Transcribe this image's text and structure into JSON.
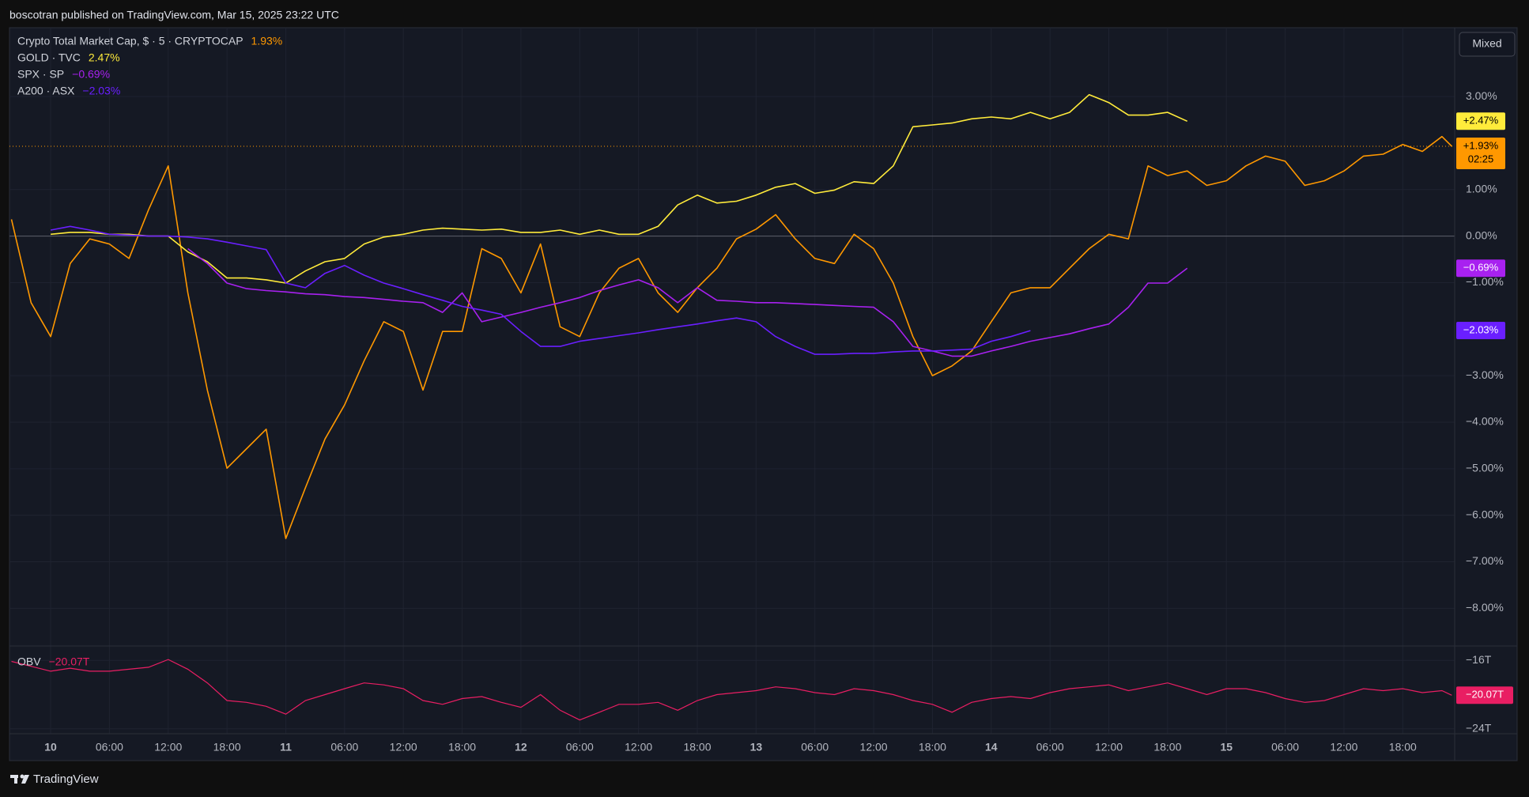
{
  "header": {
    "text": "boscotran published on TradingView.com, Mar 15, 2025 23:22 UTC"
  },
  "ui": {
    "mode_button": "Mixed"
  },
  "footer": {
    "brand": "TradingView"
  },
  "chart_data": [
    {
      "type": "line",
      "x": [
        -4,
        -2,
        0,
        2,
        4,
        6,
        8,
        10,
        12,
        14,
        16,
        18,
        20,
        22,
        24,
        26,
        28,
        30,
        32,
        34,
        36,
        38,
        40,
        42,
        44,
        46,
        48,
        50,
        52,
        54,
        56,
        58,
        60,
        62,
        64,
        66,
        68,
        70,
        72,
        74,
        76,
        78,
        80,
        82,
        84,
        86,
        88,
        90,
        92,
        94,
        96,
        98,
        100,
        102,
        104,
        106,
        108,
        110,
        112,
        114,
        116,
        118,
        120,
        122,
        124,
        126,
        128,
        130,
        132,
        134,
        136,
        138,
        140,
        142,
        143
      ],
      "xlim": [
        -4.2,
        143.3
      ],
      "xticks": [
        {
          "value": 0,
          "label": "10"
        },
        {
          "value": 6,
          "label": "06:00"
        },
        {
          "value": 12,
          "label": "12:00"
        },
        {
          "value": 18,
          "label": "18:00"
        },
        {
          "value": 24,
          "label": "11"
        },
        {
          "value": 30,
          "label": "06:00"
        },
        {
          "value": 36,
          "label": "12:00"
        },
        {
          "value": 42,
          "label": "18:00"
        },
        {
          "value": 48,
          "label": "12"
        },
        {
          "value": 54,
          "label": "06:00"
        },
        {
          "value": 60,
          "label": "12:00"
        },
        {
          "value": 66,
          "label": "18:00"
        },
        {
          "value": 72,
          "label": "13"
        },
        {
          "value": 78,
          "label": "06:00"
        },
        {
          "value": 84,
          "label": "12:00"
        },
        {
          "value": 90,
          "label": "18:00"
        },
        {
          "value": 96,
          "label": "14"
        },
        {
          "value": 102,
          "label": "06:00"
        },
        {
          "value": 108,
          "label": "12:00"
        },
        {
          "value": 114,
          "label": "18:00"
        },
        {
          "value": 120,
          "label": "15"
        },
        {
          "value": 126,
          "label": "06:00"
        },
        {
          "value": 132,
          "label": "12:00"
        },
        {
          "value": 138,
          "label": "18:00"
        }
      ],
      "ylim": [
        -8.81,
        4.48
      ],
      "yticks": [
        {
          "value": 3,
          "label": "3.00%"
        },
        {
          "value": 1,
          "label": "1.00%"
        },
        {
          "value": 0,
          "label": "0.00%"
        },
        {
          "value": -1,
          "label": "−1.00%"
        },
        {
          "value": -3,
          "label": "−3.00%"
        },
        {
          "value": -4,
          "label": "−4.00%"
        },
        {
          "value": -5,
          "label": "−5.00%"
        },
        {
          "value": -6,
          "label": "−6.00%"
        },
        {
          "value": -7,
          "label": "−7.00%"
        },
        {
          "value": -8,
          "label": "−8.00%"
        }
      ],
      "grid": true,
      "countdown": "02:25",
      "series": [
        {
          "name": "Crypto Total Market Cap, $ · 5 · CRYPTOCAP",
          "color": "#ff9800",
          "legend_label": "1.93%",
          "last": 1.93,
          "last_label": "+1.93%",
          "values": [
            0.36,
            -1.43,
            -2.16,
            -0.59,
            -0.06,
            -0.17,
            -0.48,
            0.57,
            1.51,
            -1.22,
            -3.31,
            -4.99,
            -4.57,
            -4.15,
            -6.5,
            -5.41,
            -4.36,
            -3.63,
            -2.68,
            -1.84,
            -2.05,
            -3.31,
            -2.05,
            -2.05,
            -0.27,
            -0.48,
            -1.22,
            -0.17,
            -1.95,
            -2.16,
            -1.22,
            -0.69,
            -0.48,
            -1.22,
            -1.64,
            -1.11,
            -0.69,
            -0.06,
            0.15,
            0.46,
            -0.06,
            -0.48,
            -0.59,
            0.04,
            -0.27,
            -1.01,
            -2.16,
            -3.0,
            -2.79,
            -2.47,
            -1.84,
            -1.22,
            -1.11,
            -1.11,
            -0.69,
            -0.27,
            0.04,
            -0.06,
            1.51,
            1.3,
            1.4,
            1.09,
            1.19,
            1.51,
            1.72,
            1.61,
            1.09,
            1.19,
            1.4,
            1.72,
            1.76,
            1.97,
            1.82,
            2.14,
            1.93
          ]
        },
        {
          "name": "GOLD · TVC",
          "color": "#ffeb3b",
          "legend_label": "2.47%",
          "last": 2.47,
          "last_label": "+2.47%",
          "values": [
            null,
            null,
            0.04,
            0.08,
            0.08,
            0.04,
            0.04,
            0,
            0,
            -0.34,
            -0.55,
            -0.9,
            -0.9,
            -0.94,
            -1.01,
            -0.75,
            -0.55,
            -0.48,
            -0.17,
            -0.02,
            0.04,
            0.13,
            0.17,
            0.15,
            0.13,
            0.15,
            0.08,
            0.08,
            0.13,
            0.04,
            0.13,
            0.04,
            0.04,
            0.21,
            0.67,
            0.88,
            0.71,
            0.75,
            0.88,
            1.05,
            1.13,
            0.92,
            0.99,
            1.17,
            1.13,
            1.51,
            2.35,
            2.39,
            2.43,
            2.52,
            2.56,
            2.52,
            2.66,
            2.52,
            2.66,
            3.04,
            2.87,
            2.6,
            2.6,
            2.66,
            2.47,
            null,
            null,
            null,
            null,
            null,
            null,
            null,
            null,
            null,
            null,
            null,
            null,
            null,
            null
          ]
        },
        {
          "name": "SPX · SP",
          "color": "#a821f0",
          "legend_label": "−0.69%",
          "last": -0.69,
          "last_label": "−0.69%",
          "values": [
            null,
            null,
            null,
            null,
            null,
            null,
            null,
            null,
            null,
            -0.27,
            -0.59,
            -1.01,
            -1.13,
            -1.17,
            -1.2,
            -1.24,
            -1.26,
            -1.3,
            -1.32,
            -1.36,
            -1.4,
            -1.43,
            -1.64,
            -1.22,
            -1.84,
            -1.74,
            -1.64,
            -1.53,
            -1.43,
            -1.32,
            -1.17,
            -1.05,
            -0.94,
            -1.11,
            -1.43,
            -1.11,
            -1.38,
            -1.4,
            -1.43,
            -1.43,
            -1.45,
            -1.47,
            -1.49,
            -1.51,
            -1.53,
            -1.84,
            -2.37,
            -2.47,
            -2.58,
            -2.58,
            -2.47,
            -2.37,
            -2.26,
            -2.18,
            -2.1,
            -1.99,
            -1.89,
            -1.53,
            -1.01,
            -1.01,
            -0.69,
            null,
            null,
            null,
            null,
            null,
            null,
            null,
            null,
            null,
            null,
            null,
            null,
            null,
            null
          ]
        },
        {
          "name": "A200 · ASX",
          "color": "#6a1fff",
          "legend_label": "−2.03%",
          "last": -2.03,
          "last_label": "−2.03%",
          "values": [
            null,
            null,
            0.13,
            0.21,
            0.13,
            0.04,
            0.02,
            0,
            0,
            -0.02,
            -0.06,
            -0.13,
            -0.21,
            -0.29,
            -1.01,
            -1.11,
            -0.8,
            -0.63,
            -0.84,
            -1.01,
            -1.13,
            -1.26,
            -1.38,
            -1.51,
            -1.59,
            -1.68,
            -2.05,
            -2.37,
            -2.37,
            -2.26,
            -2.2,
            -2.14,
            -2.08,
            -2.01,
            -1.95,
            -1.89,
            -1.82,
            -1.76,
            -1.84,
            -2.16,
            -2.37,
            -2.54,
            -2.54,
            -2.52,
            -2.52,
            -2.49,
            -2.47,
            -2.47,
            -2.45,
            -2.43,
            -2.26,
            -2.16,
            -2.03,
            null,
            null,
            null,
            null,
            null,
            null,
            null,
            null,
            null,
            null,
            null,
            null,
            null,
            null,
            null,
            null,
            null,
            null,
            null,
            null,
            null,
            null
          ]
        }
      ]
    },
    {
      "type": "line",
      "title": "OBV",
      "color": "#e91e63",
      "last": -20.07,
      "last_label": "−20.07T",
      "x": [
        -4,
        -2,
        0,
        2,
        4,
        6,
        8,
        10,
        12,
        14,
        16,
        18,
        20,
        22,
        24,
        26,
        28,
        30,
        32,
        34,
        36,
        38,
        40,
        42,
        44,
        46,
        48,
        50,
        52,
        54,
        56,
        58,
        60,
        62,
        64,
        66,
        68,
        70,
        72,
        74,
        76,
        78,
        80,
        82,
        84,
        86,
        88,
        90,
        92,
        94,
        96,
        98,
        100,
        102,
        104,
        106,
        108,
        110,
        112,
        114,
        116,
        118,
        120,
        122,
        124,
        126,
        128,
        130,
        132,
        134,
        136,
        138,
        140,
        142,
        143
      ],
      "values": [
        -16.11,
        -16.69,
        -17.26,
        -16.91,
        -17.26,
        -17.26,
        -17.03,
        -16.8,
        -15.89,
        -17.03,
        -18.63,
        -20.69,
        -20.91,
        -21.37,
        -22.29,
        -20.69,
        -20,
        -19.31,
        -18.63,
        -18.86,
        -19.31,
        -20.69,
        -21.14,
        -20.46,
        -20.23,
        -20.91,
        -21.49,
        -20,
        -21.83,
        -22.97,
        -22.06,
        -21.14,
        -21.14,
        -20.91,
        -21.83,
        -20.69,
        -20,
        -19.77,
        -19.54,
        -19.09,
        -19.31,
        -19.77,
        -20,
        -19.31,
        -19.54,
        -20,
        -20.69,
        -21.14,
        -22.06,
        -20.91,
        -20.46,
        -20.23,
        -20.46,
        -19.77,
        -19.31,
        -19.09,
        -18.86,
        -19.54,
        -19.09,
        -18.63,
        -19.31,
        -20,
        -19.31,
        -19.31,
        -19.77,
        -20.46,
        -20.91,
        -20.69,
        -20,
        -19.31,
        -19.54,
        -19.31,
        -19.77,
        -19.54,
        -20.07
      ],
      "ylim": [
        -24.58,
        -14.31
      ],
      "yticks": [
        {
          "value": -16,
          "label": "−16T"
        },
        {
          "value": -24,
          "label": "−24T"
        }
      ]
    }
  ]
}
